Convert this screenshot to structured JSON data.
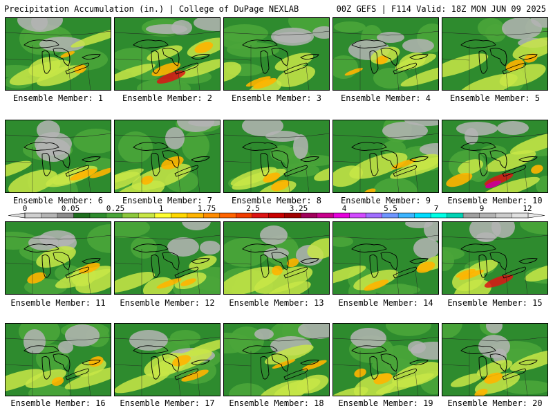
{
  "header": {
    "left": "Precipitation Accumulation (in.) | College of DuPage NEXLAB",
    "right": "00Z GEFS | F114 Valid: 18Z MON JUN 09 2025"
  },
  "panels": [
    {
      "label": "Ensemble Member: 1"
    },
    {
      "label": "Ensemble Member: 2"
    },
    {
      "label": "Ensemble Member: 3"
    },
    {
      "label": "Ensemble Member: 4"
    },
    {
      "label": "Ensemble Member: 5"
    },
    {
      "label": "Ensemble Member: 6"
    },
    {
      "label": "Ensemble Member: 7"
    },
    {
      "label": "Ensemble Member: 8"
    },
    {
      "label": "Ensemble Member: 9"
    },
    {
      "label": "Ensemble Member: 10"
    },
    {
      "label": "Ensemble Member: 11"
    },
    {
      "label": "Ensemble Member: 12"
    },
    {
      "label": "Ensemble Member: 13"
    },
    {
      "label": "Ensemble Member: 14"
    },
    {
      "label": "Ensemble Member: 15"
    },
    {
      "label": "Ensemble Member: 16"
    },
    {
      "label": "Ensemble Member: 17"
    },
    {
      "label": "Ensemble Member: 18"
    },
    {
      "label": "Ensemble Member: 19"
    },
    {
      "label": "Ensemble Member: 20"
    }
  ],
  "colorbar": {
    "labels": [
      "0",
      "0.05",
      "0.25",
      "1",
      "1.75",
      "2.5",
      "3.25",
      "4",
      "5.5",
      "7",
      "9",
      "12"
    ],
    "colors": [
      "#cfcfcf",
      "#b4b4b4",
      "#8c8c8c",
      "#1e6e1e",
      "#2e8b2e",
      "#4aa53a",
      "#8cc83c",
      "#c8e646",
      "#ffff32",
      "#ffd700",
      "#ffb400",
      "#ff8c00",
      "#ff6400",
      "#f03c00",
      "#dc1414",
      "#c80000",
      "#a00000",
      "#a0005a",
      "#c8008c",
      "#e600dc",
      "#d24bff",
      "#a06eff",
      "#6e96ff",
      "#3cb4ff",
      "#00dcff",
      "#00ffe6",
      "#00d2b4",
      "#a0a0a0",
      "#b4b4b4",
      "#cccccc",
      "#e0e0e0"
    ]
  }
}
